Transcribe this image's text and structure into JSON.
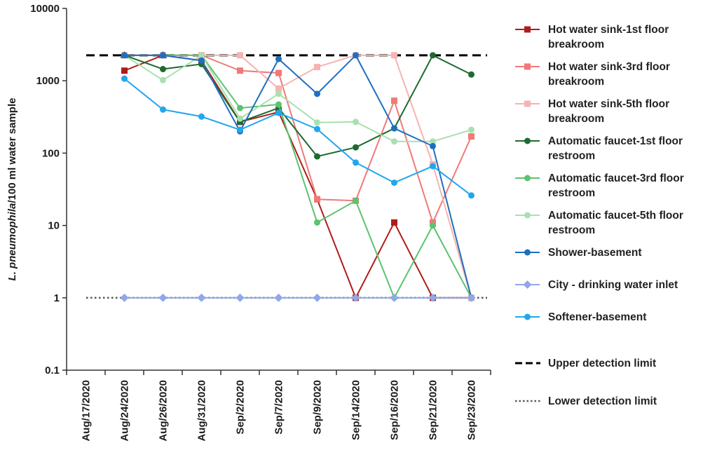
{
  "chart_data": {
    "type": "line",
    "yscale": "log",
    "ylim": [
      0.1,
      10000
    ],
    "ylabel_italic": "L. pneumophila",
    "ylabel_rest": "/100 ml water sample",
    "yticks": [
      {
        "value": 0.1,
        "label": "0.1"
      },
      {
        "value": 1,
        "label": "1"
      },
      {
        "value": 10,
        "label": "10"
      },
      {
        "value": 100,
        "label": "100"
      },
      {
        "value": 1000,
        "label": "1000"
      },
      {
        "value": 10000,
        "label": "10000"
      }
    ],
    "categories": [
      "Aug/17/2020",
      "Aug/24/2020",
      "Aug/26/2020",
      "Aug/31/2020",
      "Sep/2/2020",
      "Sep/7/2020",
      "Sep/9/2020",
      "Sep/14/2020",
      "Sep/16/2020",
      "Sep/21/2020",
      "Sep/23/2020"
    ],
    "series": [
      {
        "name_lines": [
          "Hot water sink-1st floor",
          "breakroom"
        ],
        "color": "#b01c1c",
        "marker": "square",
        "values": [
          null,
          1380,
          2250,
          1900,
          270,
          370,
          23,
          1,
          11,
          1,
          1
        ]
      },
      {
        "name_lines": [
          "Hot water sink-3rd floor",
          "breakroom"
        ],
        "color": "#ef7a78",
        "marker": "square",
        "values": [
          null,
          2250,
          2250,
          2250,
          1380,
          1280,
          23,
          22,
          530,
          11,
          170
        ]
      },
      {
        "name_lines": [
          "Hot water sink-5th floor",
          "breakroom"
        ],
        "color": "#f6b3b1",
        "marker": "square",
        "values": [
          null,
          2250,
          2250,
          2250,
          2250,
          780,
          1550,
          2250,
          2250,
          70,
          1
        ]
      },
      {
        "name_lines": [
          "Automatic faucet-1st floor",
          "restroom"
        ],
        "color": "#1e6b30",
        "marker": "circle",
        "values": [
          null,
          2250,
          1450,
          1700,
          270,
          420,
          90,
          120,
          220,
          2250,
          1220
        ]
      },
      {
        "name_lines": [
          "Automatic faucet-3rd floor",
          "restroom"
        ],
        "color": "#5cc36e",
        "marker": "circle",
        "values": [
          null,
          2250,
          2250,
          2250,
          420,
          470,
          11,
          22,
          1,
          10,
          1
        ]
      },
      {
        "name_lines": [
          "Automatic faucet-5th floor",
          "restroom"
        ],
        "color": "#a9e0b0",
        "marker": "circle",
        "values": [
          null,
          2250,
          1020,
          2250,
          300,
          660,
          265,
          270,
          145,
          145,
          210
        ]
      },
      {
        "name_lines": [
          "Shower-basement"
        ],
        "color": "#1f6fbf",
        "marker": "circle",
        "values": [
          null,
          2250,
          2250,
          1900,
          200,
          2000,
          660,
          2250,
          220,
          125,
          1
        ]
      },
      {
        "name_lines": [
          "City - drinking water inlet"
        ],
        "color": "#8fa8e8",
        "marker": "diamond",
        "values": [
          null,
          1,
          1,
          1,
          1,
          1,
          1,
          1,
          1,
          1,
          1
        ]
      },
      {
        "name_lines": [
          "Softener-basement"
        ],
        "color": "#22a6ee",
        "marker": "circle",
        "values": [
          null,
          1070,
          400,
          320,
          210,
          360,
          215,
          74,
          39,
          66,
          26
        ]
      }
    ],
    "reference_lines": [
      {
        "name": "Upper detection limit",
        "value": 2250,
        "style": "dashed",
        "color": "#000000"
      },
      {
        "name": "Lower detection limit",
        "value": 1,
        "style": "dotted",
        "color": "#555566"
      }
    ]
  }
}
